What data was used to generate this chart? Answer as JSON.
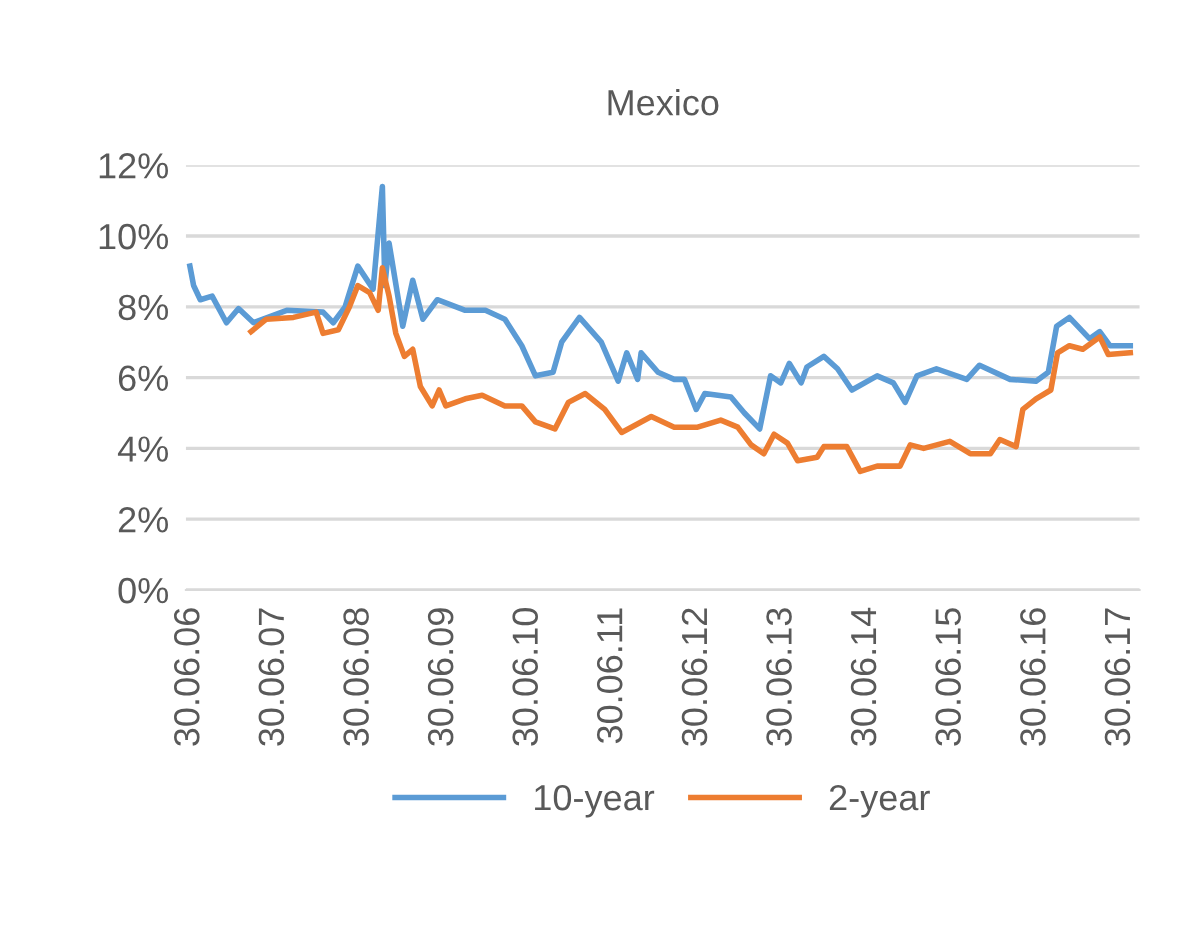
{
  "chart_data": {
    "type": "line",
    "title": "Mexico",
    "xlim": [
      "2006-06-13",
      "2017-09-20"
    ],
    "xticks": [
      {
        "value": "2006-06-30",
        "label": "30.06.06"
      },
      {
        "value": "2007-06-30",
        "label": "30.06.07"
      },
      {
        "value": "2008-06-30",
        "label": "30.06.08"
      },
      {
        "value": "2009-06-30",
        "label": "30.06.09"
      },
      {
        "value": "2010-06-30",
        "label": "30.06.10"
      },
      {
        "value": "2011-06-30",
        "label": "30.06.11"
      },
      {
        "value": "2012-06-30",
        "label": "30.06.12"
      },
      {
        "value": "2013-06-30",
        "label": "30.06.13"
      },
      {
        "value": "2014-06-30",
        "label": "30.06.14"
      },
      {
        "value": "2015-06-30",
        "label": "30.06.15"
      },
      {
        "value": "2016-06-30",
        "label": "30.06.16"
      },
      {
        "value": "2017-06-30",
        "label": "30.06.17"
      }
    ],
    "ylim": [
      0,
      12
    ],
    "yticks": [
      {
        "value": 0,
        "label": "0%"
      },
      {
        "value": 2,
        "label": "2%"
      },
      {
        "value": 4,
        "label": "4%"
      },
      {
        "value": 6,
        "label": "6%"
      },
      {
        "value": 8,
        "label": "8%"
      },
      {
        "value": 10,
        "label": "10%"
      },
      {
        "value": 12,
        "label": "12%"
      }
    ],
    "grid": "y",
    "legend": "bottom",
    "marker": "none",
    "line_style": "solid",
    "series": [
      {
        "name": "10-year",
        "color": "#5b9bd5",
        "x": [
          "2006-06-30",
          "2006-07-16",
          "2006-08-14",
          "2006-10-04",
          "2006-12-05",
          "2007-01-26",
          "2007-04-01",
          "2007-08-22",
          "2008-01-26",
          "2008-03-10",
          "2008-04-30",
          "2008-06-24",
          "2008-08-29",
          "2008-10-08",
          "2008-10-19",
          "2008-11-06",
          "2009-01-04",
          "2009-02-16",
          "2009-04-01",
          "2009-06-02",
          "2009-10-01",
          "2009-12-27",
          "2010-03-21",
          "2010-06-02",
          "2010-07-31",
          "2010-10-15",
          "2010-11-21",
          "2011-02-06",
          "2011-05-11",
          "2011-07-23",
          "2011-08-29",
          "2011-10-15",
          "2011-10-30",
          "2012-01-11",
          "2012-03-21",
          "2012-05-04",
          "2012-06-24",
          "2012-07-31",
          "2012-11-21",
          "2013-01-18",
          "2013-03-25",
          "2013-05-11",
          "2013-06-24",
          "2013-07-31",
          "2013-09-20",
          "2013-10-15",
          "2013-12-27",
          "2014-02-24",
          "2014-04-27",
          "2014-08-14",
          "2014-10-23",
          "2014-12-13",
          "2015-02-02",
          "2015-04-27",
          "2015-09-05",
          "2015-10-30",
          "2016-03-10",
          "2016-06-30",
          "2016-08-22",
          "2016-09-27",
          "2016-11-21",
          "2017-02-16",
          "2017-04-01",
          "2017-05-15",
          "2017-08-11"
        ],
        "values": [
          9.15,
          8.6,
          8.2,
          8.3,
          7.55,
          7.95,
          7.55,
          7.9,
          7.85,
          7.55,
          8.0,
          9.15,
          8.5,
          11.4,
          8.6,
          9.8,
          7.45,
          8.75,
          7.65,
          8.2,
          7.9,
          7.9,
          7.65,
          6.9,
          6.05,
          6.15,
          7.0,
          7.7,
          7.0,
          5.9,
          6.7,
          5.95,
          6.7,
          6.15,
          5.95,
          5.95,
          5.1,
          5.55,
          5.45,
          5.0,
          4.55,
          6.05,
          5.85,
          6.4,
          5.85,
          6.3,
          6.6,
          6.25,
          5.65,
          6.05,
          5.85,
          5.3,
          6.05,
          6.25,
          5.95,
          6.35,
          5.95,
          5.9,
          6.15,
          7.45,
          7.7,
          7.1,
          7.3,
          6.9,
          6.9
        ]
      },
      {
        "name": "2-year",
        "color": "#ed7d31",
        "x": [
          "2007-03-21",
          "2007-05-26",
          "2007-09-20",
          "2007-12-27",
          "2008-01-26",
          "2008-04-01",
          "2008-05-19",
          "2008-06-24",
          "2008-08-14",
          "2008-09-20",
          "2008-10-08",
          "2008-11-06",
          "2008-12-05",
          "2009-01-11",
          "2009-02-16",
          "2009-03-21",
          "2009-05-11",
          "2009-06-10",
          "2009-07-09",
          "2009-10-01",
          "2009-12-13",
          "2010-03-21",
          "2010-06-02",
          "2010-07-31",
          "2010-10-23",
          "2010-12-20",
          "2011-03-03",
          "2011-05-26",
          "2011-08-07",
          "2011-12-13",
          "2012-03-21",
          "2012-06-30",
          "2012-10-08",
          "2012-12-20",
          "2013-02-16",
          "2013-04-12",
          "2013-05-26",
          "2013-07-23",
          "2013-09-05",
          "2013-11-28",
          "2013-12-27",
          "2014-04-05",
          "2014-06-02",
          "2014-08-14",
          "2014-11-21",
          "2015-01-04",
          "2015-03-03",
          "2015-06-24",
          "2015-09-20",
          "2015-12-16",
          "2016-01-26",
          "2016-04-05",
          "2016-05-04",
          "2016-06-30",
          "2016-09-02",
          "2016-10-01",
          "2016-11-21",
          "2017-01-18",
          "2017-04-01",
          "2017-05-08",
          "2017-08-11"
        ],
        "values": [
          7.3,
          7.65,
          7.7,
          7.85,
          7.25,
          7.35,
          8.0,
          8.6,
          8.4,
          7.9,
          9.1,
          8.3,
          7.25,
          6.6,
          6.8,
          5.75,
          5.2,
          5.65,
          5.2,
          5.4,
          5.5,
          5.2,
          5.2,
          4.75,
          4.55,
          5.3,
          5.55,
          5.1,
          4.45,
          4.9,
          4.6,
          4.6,
          4.8,
          4.6,
          4.1,
          3.85,
          4.4,
          4.15,
          3.65,
          3.75,
          4.05,
          4.05,
          3.35,
          3.5,
          3.5,
          4.1,
          4.0,
          4.2,
          3.85,
          3.85,
          4.25,
          4.05,
          5.1,
          5.4,
          5.65,
          6.7,
          6.9,
          6.8,
          7.15,
          6.65,
          6.7
        ]
      }
    ]
  }
}
